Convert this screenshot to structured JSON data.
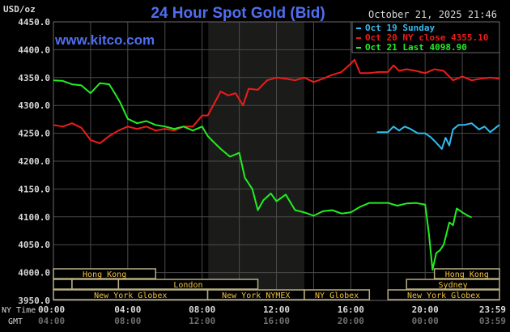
{
  "header": {
    "title": "24 Hour Spot Gold (Bid)",
    "website": "www.kitco.com",
    "timestamp": "October 21, 2025 21:46",
    "currency_unit": "USD/oz"
  },
  "legend": [
    {
      "label": "Oct 19 Sunday",
      "color": "#33bbee"
    },
    {
      "label": "Oct 20 NY close 4355.10",
      "color": "#ee1c1c"
    },
    {
      "label": "Oct 21 Last 4098.90",
      "color": "#22ee22"
    }
  ],
  "axes": {
    "y_ticks": [
      "4450.0",
      "4400.0",
      "4350.0",
      "4300.0",
      "4250.0",
      "4200.0",
      "4150.0",
      "4100.0",
      "4050.0",
      "4000.0",
      "3950.0"
    ],
    "x_row_labels": {
      "ny": "NY Time",
      "gmt": "GMT"
    },
    "x_ticks_ny": [
      "00:00",
      "04:00",
      "08:00",
      "12:00",
      "16:00",
      "20:00",
      "23:59"
    ],
    "x_ticks_gmt": [
      "04:00",
      "08:00",
      "12:00",
      "16:00",
      "20:00",
      "00:00",
      "03:59"
    ]
  },
  "sessions": [
    {
      "name": "Hong Kong",
      "row": 0,
      "start": 0,
      "end": 5.5
    },
    {
      "name": "",
      "row": 1,
      "start": 0,
      "end": 1.0
    },
    {
      "name": "",
      "row": 1,
      "start": 1.0,
      "end": 3.5
    },
    {
      "name": "London",
      "row": 1,
      "start": 3.5,
      "end": 11.0
    },
    {
      "name": "New York Globex",
      "row": 2,
      "start": 0,
      "end": 8.3
    },
    {
      "name": "New York NYMEX",
      "row": 2,
      "start": 8.3,
      "end": 13.5
    },
    {
      "name": "NY Globex",
      "row": 2,
      "start": 13.5,
      "end": 17.0
    },
    {
      "name": "Hong Kong",
      "row": 0,
      "start": 20.5,
      "end": 24
    },
    {
      "name": "Sydney",
      "row": 1,
      "start": 19.0,
      "end": 24
    },
    {
      "name": "New York Globex",
      "row": 2,
      "start": 18.0,
      "end": 24
    }
  ],
  "chart_data": {
    "type": "line",
    "title": "24 Hour Spot Gold (Bid)",
    "xlabel": "NY Time / GMT",
    "ylabel": "USD/oz",
    "ylim": [
      3950,
      4450
    ],
    "xlim": [
      0,
      24
    ],
    "grid": true,
    "shaded_region": {
      "start": 8.33,
      "end": 13.5,
      "label": "New York NYMEX hours"
    },
    "legend_position": "top-right",
    "series": [
      {
        "name": "Oct 19 Sunday",
        "color": "#33bbee",
        "x": [
          17.4,
          18.0,
          18.3,
          18.6,
          18.9,
          19.2,
          19.6,
          20.0,
          20.3,
          20.6,
          20.9,
          21.1,
          21.3,
          21.5,
          21.8,
          22.1,
          22.5,
          22.9,
          23.2,
          23.5,
          23.8,
          23.99
        ],
        "values": [
          4252,
          4252,
          4262,
          4255,
          4262,
          4258,
          4250,
          4250,
          4243,
          4233,
          4222,
          4242,
          4228,
          4257,
          4265,
          4265,
          4268,
          4257,
          4262,
          4252,
          4260,
          4265
        ]
      },
      {
        "name": "Oct 20 NY close 4355.10",
        "color": "#ee1c1c",
        "x": [
          0,
          0.5,
          1.0,
          1.5,
          2.0,
          2.5,
          3.0,
          3.5,
          4.0,
          4.5,
          5.0,
          5.5,
          6.0,
          6.5,
          7.0,
          7.5,
          8.0,
          8.3,
          8.6,
          9.0,
          9.4,
          9.8,
          10.2,
          10.5,
          11.0,
          11.5,
          12.0,
          12.5,
          13.0,
          13.5,
          14.0,
          14.5,
          15.0,
          15.5,
          16.0,
          16.2,
          16.5,
          17.0,
          17.5,
          18.0,
          18.3,
          18.6,
          19.0,
          19.5,
          20.0,
          20.5,
          21.0,
          21.5,
          22.0,
          22.5,
          23.0,
          23.5,
          23.99
        ],
        "values": [
          4265,
          4262,
          4268,
          4260,
          4238,
          4232,
          4245,
          4255,
          4262,
          4258,
          4262,
          4255,
          4258,
          4255,
          4262,
          4262,
          4282,
          4282,
          4300,
          4325,
          4318,
          4322,
          4300,
          4330,
          4328,
          4345,
          4350,
          4348,
          4345,
          4350,
          4342,
          4348,
          4355,
          4360,
          4375,
          4382,
          4358,
          4358,
          4360,
          4360,
          4372,
          4362,
          4365,
          4362,
          4358,
          4365,
          4362,
          4345,
          4352,
          4345,
          4348,
          4350,
          4348
        ]
      },
      {
        "name": "Oct 21 Last 4098.90",
        "color": "#22ee22",
        "x": [
          0,
          0.5,
          1.0,
          1.5,
          2.0,
          2.5,
          3.0,
          3.3,
          3.6,
          4.0,
          4.5,
          5.0,
          5.5,
          6.0,
          6.5,
          7.0,
          7.5,
          8.0,
          8.3,
          8.6,
          9.0,
          9.5,
          10.0,
          10.3,
          10.7,
          11.0,
          11.3,
          11.7,
          12.0,
          12.5,
          13.0,
          13.5,
          14.0,
          14.5,
          15.0,
          15.5,
          16.0,
          16.5,
          17.0,
          17.5,
          18.0,
          18.5,
          19.0,
          19.5,
          20.0,
          20.2,
          20.4,
          20.6,
          20.8,
          21.0,
          21.3,
          21.5,
          21.7,
          22.0,
          22.3,
          22.5
        ],
        "values": [
          4345,
          4344,
          4338,
          4336,
          4322,
          4340,
          4338,
          4322,
          4305,
          4276,
          4268,
          4272,
          4265,
          4262,
          4258,
          4262,
          4255,
          4262,
          4245,
          4235,
          4222,
          4208,
          4215,
          4170,
          4150,
          4112,
          4130,
          4142,
          4128,
          4140,
          4112,
          4108,
          4102,
          4110,
          4112,
          4106,
          4108,
          4118,
          4125,
          4125,
          4125,
          4120,
          4124,
          4125,
          4122,
          4070,
          4005,
          4035,
          4040,
          4050,
          4090,
          4085,
          4115,
          4108,
          4102,
          4099
        ]
      }
    ]
  }
}
